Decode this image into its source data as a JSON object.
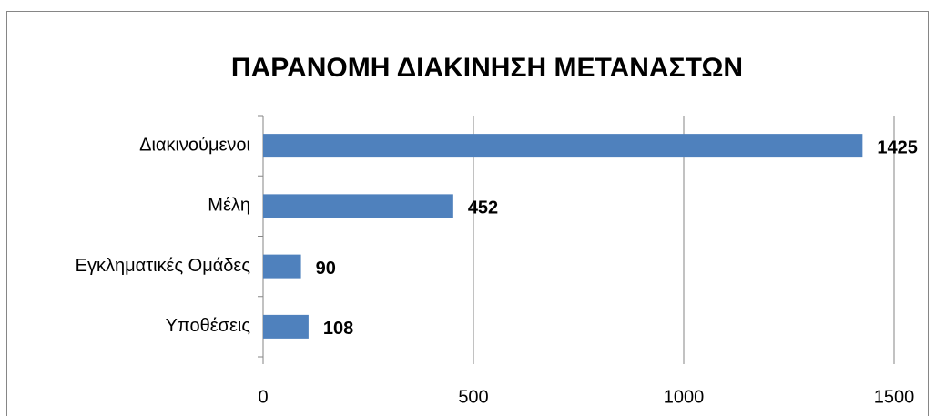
{
  "chart_data": {
    "type": "bar",
    "orientation": "horizontal",
    "title": "ΠΑΡΑΝΟΜΗ ΔΙΑΚΙΝΗΣΗ ΜΕΤΑΝΑΣΤΩΝ",
    "categories": [
      "Διακινούμενοι",
      "Μέλη",
      "Εγκληματικές Ομάδες",
      "Υποθέσεις"
    ],
    "values": [
      1425,
      452,
      90,
      108
    ],
    "color": "#4f81bd",
    "xlim": [
      0,
      1500
    ],
    "xticks": [
      0,
      500,
      1000,
      1500
    ],
    "grid": true
  }
}
